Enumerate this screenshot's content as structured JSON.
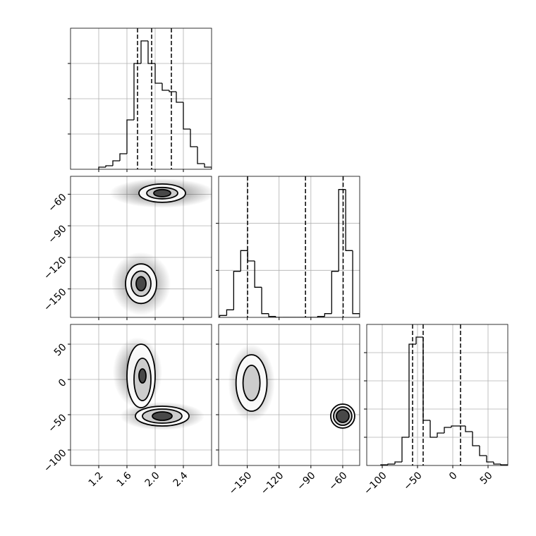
{
  "chart_data": [
    {
      "type": "histogram",
      "bins": [
        1.2,
        1.3,
        1.4,
        1.5,
        1.6,
        1.7,
        1.8,
        1.9,
        2.0,
        2.1,
        2.2,
        2.3,
        2.4,
        2.5,
        2.6,
        2.7,
        2.8
      ],
      "values": [
        3,
        5,
        12,
        22,
        70,
        150,
        182,
        150,
        122,
        112,
        110,
        95,
        57,
        32,
        8,
        3
      ],
      "color": "#000000",
      "quantiles": [
        1.75,
        1.95,
        2.23
      ],
      "xlim": [
        0.8,
        2.8
      ],
      "ylim": [
        0,
        200
      ],
      "xticks": [
        1.2,
        1.6,
        {
          "value": 2,
          "label": "2.0"
        },
        2.4
      ],
      "yticks": [
        50,
        100,
        150
      ],
      "grid": true
    },
    {
      "type": "contour",
      "xlim": [
        0.8,
        2.8
      ],
      "ylim": [
        -177,
        -43
      ],
      "xticks": [
        1.2,
        1.6,
        {
          "value": 2,
          "label": "2.0"
        },
        2.4
      ],
      "yticks": [
        {
          "value": -60,
          "label": "−60"
        },
        {
          "value": -90,
          "label": "−90"
        },
        {
          "value": -120,
          "label": "−120"
        },
        {
          "value": -150,
          "label": "−150"
        }
      ],
      "grid": true,
      "clouds": [
        {
          "cx": 2.1,
          "cy": -59,
          "rx": 0.75,
          "ry": 14
        },
        {
          "cx": 1.8,
          "cy": -145,
          "rx": 0.42,
          "ry": 30
        }
      ],
      "contours": [
        {
          "cx": 2.1,
          "cy": -59,
          "rx": 0.33,
          "ry": 8.7,
          "level": 0
        },
        {
          "cx": 1.8,
          "cy": -145,
          "rx": 0.22,
          "ry": 18.8,
          "level": 0
        },
        {
          "cx": 2.1,
          "cy": -59,
          "rx": 0.22,
          "ry": 5.4,
          "level": 1
        },
        {
          "cx": 1.8,
          "cy": -145,
          "rx": 0.14,
          "ry": 12,
          "level": 1
        },
        {
          "cx": 2.1,
          "cy": -59,
          "rx": 0.12,
          "ry": 3.4,
          "level": 2
        },
        {
          "cx": 1.8,
          "cy": -145,
          "rx": 0.07,
          "ry": 6.7,
          "level": 2
        }
      ]
    },
    {
      "type": "histogram",
      "bins": [
        -176,
        -169.4,
        -162.8,
        -156.2,
        -149.6,
        -143,
        -136.4,
        -129.8,
        -123.2,
        -116.6,
        -110,
        -103.4,
        -96.8,
        -90.2,
        -83.6,
        -77,
        -70.4,
        -63.8,
        -57.2,
        -50.6,
        -44
      ],
      "values": [
        2,
        8,
        49,
        71,
        60,
        32,
        4,
        1,
        0,
        0,
        0,
        0,
        0,
        0,
        1,
        4,
        49,
        136,
        71,
        4
      ],
      "color": "#000000",
      "quantiles": [
        -149.7,
        -95.1,
        -59.6
      ],
      "xlim": [
        -177,
        -44
      ],
      "ylim": [
        0,
        150
      ],
      "xticks": [
        {
          "value": -150,
          "label": "−150"
        },
        {
          "value": -120,
          "label": "−120"
        },
        {
          "value": -90,
          "label": "−90"
        },
        {
          "value": -60,
          "label": "−60"
        }
      ],
      "yticks": [
        50,
        100
      ],
      "grid": true
    },
    {
      "type": "contour",
      "xlim": [
        0.8,
        2.8
      ],
      "ylim": [
        -122,
        78
      ],
      "xticks": [
        1.2,
        1.6,
        {
          "value": 2,
          "label": "2.0"
        },
        2.4
      ],
      "yticks": [
        50,
        0,
        {
          "value": -50,
          "label": "−50"
        },
        {
          "value": -100,
          "label": "−100"
        }
      ],
      "grid": true,
      "clouds": [
        {
          "cx": 1.75,
          "cy": 10,
          "rx": 0.35,
          "ry": 50
        },
        {
          "cx": 2.1,
          "cy": -52,
          "rx": 0.6,
          "ry": 20
        }
      ],
      "contours": [
        {
          "cx": 1.8,
          "cy": 5,
          "rx": 0.2,
          "ry": 45,
          "level": 0
        },
        {
          "cx": 2.1,
          "cy": -52,
          "rx": 0.38,
          "ry": 14,
          "level": 0
        },
        {
          "cx": 1.82,
          "cy": 0,
          "rx": 0.12,
          "ry": 30,
          "level": 1
        },
        {
          "cx": 2.1,
          "cy": -52,
          "rx": 0.28,
          "ry": 10,
          "level": 1
        },
        {
          "cx": 1.82,
          "cy": 5,
          "rx": 0.05,
          "ry": 10,
          "level": 2
        },
        {
          "cx": 2.1,
          "cy": -52,
          "rx": 0.14,
          "ry": 6,
          "level": 2
        }
      ]
    },
    {
      "type": "contour",
      "xlim": [
        -177,
        -44
      ],
      "ylim": [
        -122,
        78
      ],
      "xticks": [
        {
          "value": -150,
          "label": "−150"
        },
        {
          "value": -120,
          "label": "−120"
        },
        {
          "value": -90,
          "label": "−90"
        },
        {
          "value": -60,
          "label": "−60"
        }
      ],
      "yticks": [
        50,
        0,
        {
          "value": -50,
          "label": "−50"
        },
        {
          "value": -100,
          "label": "−100"
        }
      ],
      "grid": true,
      "clouds": [
        {
          "cx": -146,
          "cy": -5,
          "rx": 22,
          "ry": 55
        },
        {
          "cx": -60,
          "cy": -52,
          "rx": 12,
          "ry": 20
        }
      ],
      "contours": [
        {
          "cx": -146,
          "cy": -5,
          "rx": 14.6,
          "ry": 40,
          "level": 0
        },
        {
          "cx": -60,
          "cy": -52,
          "rx": 11.3,
          "ry": 17,
          "level": 0
        },
        {
          "cx": -146,
          "cy": -5,
          "rx": 8,
          "ry": 25,
          "level": 1
        },
        {
          "cx": -60,
          "cy": -52,
          "rx": 8.6,
          "ry": 13,
          "level": 1
        },
        {
          "cx": -60,
          "cy": -52,
          "rx": 6,
          "ry": 9,
          "level": 2
        }
      ]
    },
    {
      "type": "histogram",
      "bins": [
        -102,
        -92,
        -82,
        -72,
        -62,
        -52,
        -42,
        -32,
        -22,
        -12,
        -2,
        8,
        18,
        28,
        38,
        48,
        58,
        68,
        78
      ],
      "values": [
        0.5,
        1,
        2.5,
        20,
        86,
        91,
        32,
        20,
        23,
        27,
        28,
        28,
        24,
        14,
        7,
        2.5,
        1,
        0.5
      ],
      "color": "#000000",
      "quantiles": [
        -57,
        -42,
        11
      ],
      "xlim": [
        -122,
        78
      ],
      "ylim": [
        0,
        100
      ],
      "xticks": [
        {
          "value": -100,
          "label": "−100"
        },
        {
          "value": -50,
          "label": "−50"
        },
        0,
        50
      ],
      "yticks": [
        20,
        40,
        60,
        80
      ],
      "grid": true
    }
  ]
}
